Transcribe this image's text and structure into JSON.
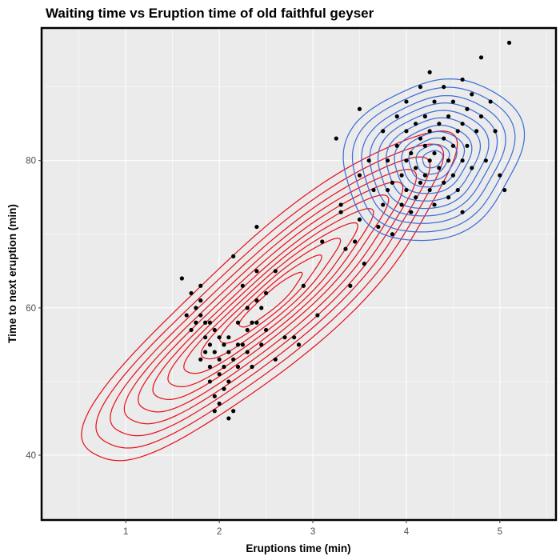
{
  "chart_data": {
    "type": "scatter",
    "title": "Waiting time vs Eruption time of old faithful geyser",
    "xlabel": "Eruptions time (min)",
    "ylabel": "Time to next eruption (min)",
    "xlim": [
      0.1,
      5.6
    ],
    "ylim": [
      31.2,
      98.0
    ],
    "x_ticks": [
      1,
      2,
      3,
      4,
      5
    ],
    "y_ticks": [
      40,
      60,
      80
    ],
    "grid": true,
    "legend": "none",
    "colors": {
      "panel_background": "#ebebeb",
      "gridline": "#ffffff",
      "points": "#000000",
      "short_cluster_contours": "#e8141d",
      "long_cluster_contours": "#3f6fd8",
      "panel_border": "#000000"
    },
    "contour_groups": [
      {
        "color": "#e8141d",
        "center": [
          2.55,
          61.0
        ],
        "slope": 13.8,
        "axis_angle_deg": 38.5,
        "levels": [
          {
            "a": 2.48,
            "b": 0.62
          },
          {
            "a": 2.3,
            "b": 0.54
          },
          {
            "a": 2.12,
            "b": 0.47
          },
          {
            "a": 1.94,
            "b": 0.41
          },
          {
            "a": 1.76,
            "b": 0.355
          },
          {
            "a": 1.57,
            "b": 0.3
          },
          {
            "a": 1.37,
            "b": 0.255
          },
          {
            "a": 1.16,
            "b": 0.21
          },
          {
            "a": 0.93,
            "b": 0.165
          },
          {
            "a": 0.68,
            "b": 0.12
          },
          {
            "a": 0.42,
            "b": 0.08
          }
        ]
      },
      {
        "color": "#3f6fd8",
        "center": [
          4.28,
          80.2
        ],
        "slope": 13.8,
        "axis_angle_deg": 22,
        "levels": [
          {
            "a": 0.98,
            "b": 0.76
          },
          {
            "a": 0.88,
            "b": 0.68
          },
          {
            "a": 0.78,
            "b": 0.6
          },
          {
            "a": 0.69,
            "b": 0.53
          },
          {
            "a": 0.6,
            "b": 0.46
          },
          {
            "a": 0.51,
            "b": 0.39
          },
          {
            "a": 0.42,
            "b": 0.32
          },
          {
            "a": 0.34,
            "b": 0.26
          },
          {
            "a": 0.26,
            "b": 0.2
          },
          {
            "a": 0.18,
            "b": 0.14
          },
          {
            "a": 0.11,
            "b": 0.08
          }
        ]
      }
    ],
    "points": [
      [
        1.6,
        64
      ],
      [
        1.65,
        59
      ],
      [
        1.7,
        57
      ],
      [
        1.7,
        62
      ],
      [
        1.75,
        60
      ],
      [
        1.75,
        58
      ],
      [
        1.8,
        61
      ],
      [
        1.8,
        59
      ],
      [
        1.8,
        63
      ],
      [
        1.8,
        53
      ],
      [
        1.85,
        58
      ],
      [
        1.85,
        56
      ],
      [
        1.85,
        54
      ],
      [
        1.9,
        58
      ],
      [
        1.9,
        55
      ],
      [
        1.9,
        52
      ],
      [
        1.9,
        50
      ],
      [
        1.95,
        57
      ],
      [
        1.95,
        54
      ],
      [
        1.95,
        48
      ],
      [
        1.95,
        46
      ],
      [
        2.0,
        56
      ],
      [
        2.0,
        53
      ],
      [
        2.0,
        51
      ],
      [
        2.0,
        47
      ],
      [
        2.05,
        55
      ],
      [
        2.05,
        52
      ],
      [
        2.05,
        49
      ],
      [
        2.1,
        56
      ],
      [
        2.1,
        54
      ],
      [
        2.1,
        50
      ],
      [
        2.1,
        45
      ],
      [
        2.15,
        67
      ],
      [
        2.15,
        53
      ],
      [
        2.15,
        46
      ],
      [
        2.2,
        58
      ],
      [
        2.2,
        55
      ],
      [
        2.2,
        52
      ],
      [
        2.25,
        63
      ],
      [
        2.25,
        55
      ],
      [
        2.3,
        60
      ],
      [
        2.3,
        57
      ],
      [
        2.3,
        54
      ],
      [
        2.35,
        58
      ],
      [
        2.35,
        52
      ],
      [
        2.4,
        71
      ],
      [
        2.4,
        65
      ],
      [
        2.4,
        61
      ],
      [
        2.4,
        58
      ],
      [
        2.45,
        60
      ],
      [
        2.45,
        55
      ],
      [
        2.5,
        62
      ],
      [
        2.5,
        57
      ],
      [
        2.6,
        53
      ],
      [
        2.6,
        65
      ],
      [
        2.7,
        56
      ],
      [
        2.8,
        56
      ],
      [
        2.85,
        55
      ],
      [
        2.9,
        63
      ],
      [
        3.1,
        69
      ],
      [
        3.3,
        74
      ],
      [
        3.35,
        68
      ],
      [
        3.4,
        63
      ],
      [
        3.45,
        69
      ],
      [
        3.5,
        72
      ],
      [
        3.5,
        78
      ],
      [
        3.55,
        66
      ],
      [
        3.6,
        80
      ],
      [
        3.65,
        76
      ],
      [
        3.7,
        71
      ],
      [
        3.75,
        74
      ],
      [
        3.75,
        84
      ],
      [
        3.8,
        76
      ],
      [
        3.8,
        80
      ],
      [
        3.85,
        70
      ],
      [
        3.85,
        77
      ],
      [
        3.9,
        86
      ],
      [
        3.9,
        82
      ],
      [
        3.95,
        78
      ],
      [
        3.95,
        74
      ],
      [
        4.0,
        88
      ],
      [
        4.0,
        84
      ],
      [
        4.0,
        80
      ],
      [
        4.0,
        76
      ],
      [
        4.05,
        81
      ],
      [
        4.05,
        73
      ],
      [
        4.1,
        85
      ],
      [
        4.1,
        79
      ],
      [
        4.1,
        75
      ],
      [
        4.15,
        90
      ],
      [
        4.15,
        83
      ],
      [
        4.15,
        77
      ],
      [
        4.2,
        86
      ],
      [
        4.2,
        82
      ],
      [
        4.2,
        78
      ],
      [
        4.25,
        92
      ],
      [
        4.25,
        84
      ],
      [
        4.25,
        80
      ],
      [
        4.25,
        76
      ],
      [
        4.3,
        88
      ],
      [
        4.3,
        81
      ],
      [
        4.3,
        74
      ],
      [
        4.35,
        85
      ],
      [
        4.35,
        79
      ],
      [
        4.4,
        90
      ],
      [
        4.4,
        83
      ],
      [
        4.4,
        77
      ],
      [
        4.45,
        86
      ],
      [
        4.45,
        80
      ],
      [
        4.45,
        75
      ],
      [
        4.5,
        88
      ],
      [
        4.5,
        82
      ],
      [
        4.5,
        78
      ],
      [
        4.55,
        84
      ],
      [
        4.55,
        76
      ],
      [
        4.6,
        91
      ],
      [
        4.6,
        85
      ],
      [
        4.6,
        80
      ],
      [
        4.6,
        73
      ],
      [
        4.65,
        87
      ],
      [
        4.65,
        82
      ],
      [
        4.7,
        89
      ],
      [
        4.7,
        79
      ],
      [
        4.75,
        84
      ],
      [
        4.8,
        94
      ],
      [
        4.8,
        86
      ],
      [
        4.85,
        80
      ],
      [
        4.9,
        88
      ],
      [
        4.95,
        84
      ],
      [
        5.0,
        78
      ],
      [
        5.05,
        76
      ],
      [
        5.1,
        96
      ],
      [
        3.25,
        83
      ],
      [
        3.5,
        87
      ],
      [
        3.05,
        59
      ],
      [
        3.3,
        73
      ]
    ]
  }
}
